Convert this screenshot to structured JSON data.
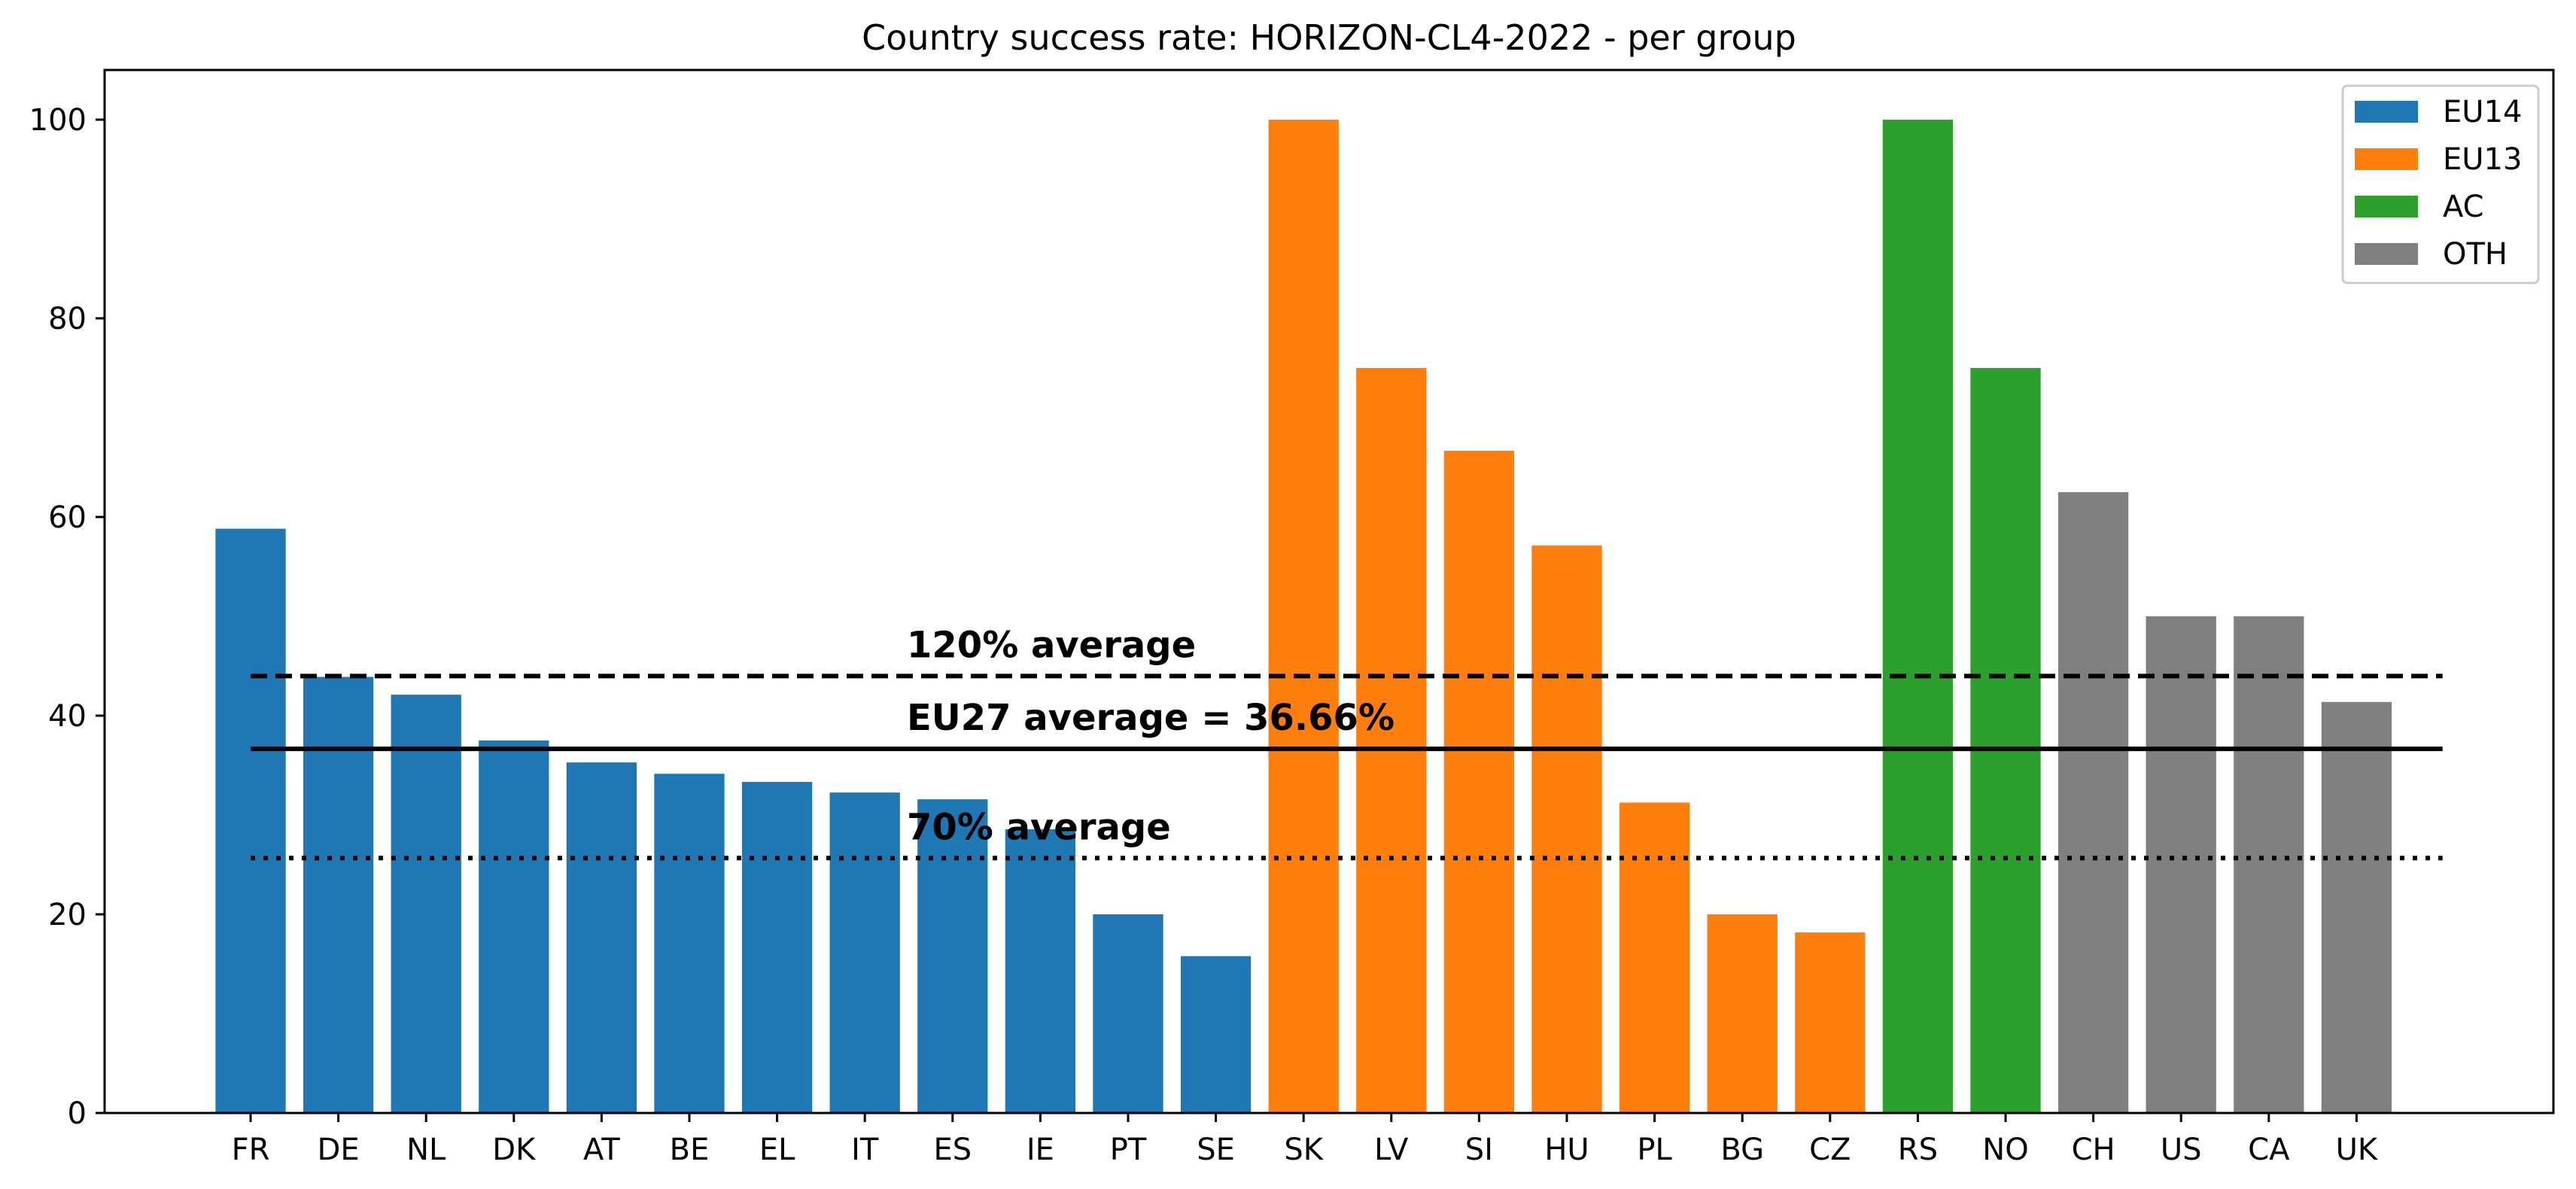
{
  "chart_data": {
    "type": "bar",
    "title": "Country success rate: HORIZON-CL4-2022 - per group",
    "xlabel": "",
    "ylabel": "",
    "ylim": [
      0,
      105
    ],
    "yticks": [
      0,
      20,
      40,
      60,
      80,
      100
    ],
    "grid": false,
    "legend_position": "top-right",
    "categories": [
      "FR",
      "DE",
      "NL",
      "DK",
      "AT",
      "BE",
      "EL",
      "IT",
      "ES",
      "IE",
      "PT",
      "SE",
      "SK",
      "LV",
      "SI",
      "HU",
      "PL",
      "BG",
      "CZ",
      "RS",
      "NO",
      "CH",
      "US",
      "CA",
      "UK"
    ],
    "values": [
      58.82,
      43.9,
      42.11,
      37.5,
      35.29,
      34.15,
      33.33,
      32.26,
      31.58,
      28.57,
      20.0,
      15.79,
      100.0,
      75.0,
      66.67,
      57.14,
      31.25,
      20.0,
      18.18,
      100.0,
      75.0,
      62.5,
      50.0,
      50.0,
      41.38
    ],
    "groups": [
      "EU14",
      "EU14",
      "EU14",
      "EU14",
      "EU14",
      "EU14",
      "EU14",
      "EU14",
      "EU14",
      "EU14",
      "EU14",
      "EU14",
      "EU13",
      "EU13",
      "EU13",
      "EU13",
      "EU13",
      "EU13",
      "EU13",
      "AC",
      "AC",
      "OTH",
      "OTH",
      "OTH",
      "OTH"
    ],
    "legend": [
      {
        "name": "EU14",
        "color": "#1f77b4"
      },
      {
        "name": "EU13",
        "color": "#ff7f0e"
      },
      {
        "name": "AC",
        "color": "#2ca02c"
      },
      {
        "name": "OTH",
        "color": "#7f7f7f"
      }
    ],
    "reference_lines": [
      {
        "name": "120% average",
        "value": 43.99,
        "style": "dashed",
        "label": "120% average"
      },
      {
        "name": "EU27 average",
        "value": 36.66,
        "style": "solid",
        "label": "EU27 average = 36.66%"
      },
      {
        "name": "70% average",
        "value": 25.66,
        "style": "dotted",
        "label": "70% average"
      }
    ]
  }
}
